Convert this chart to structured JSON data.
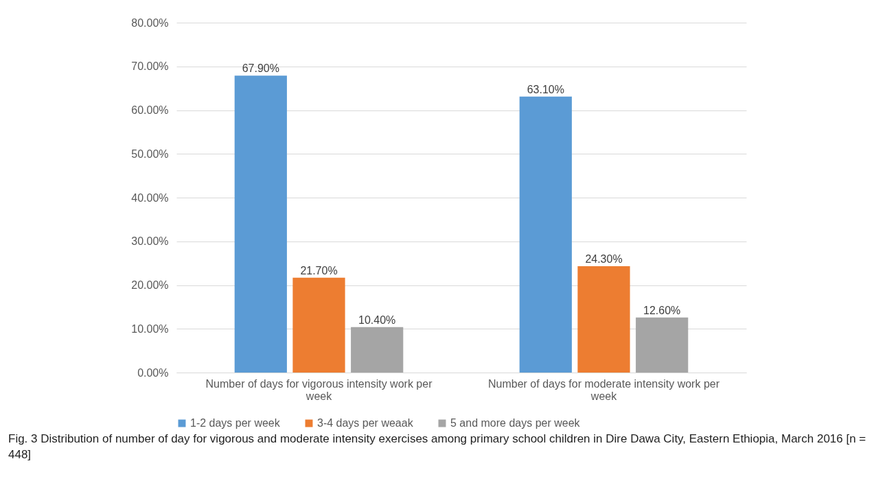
{
  "chart_data": {
    "type": "bar",
    "categories": [
      "Number of days for vigorous intensity work  per week",
      "Number of days for moderate intensity work  per week"
    ],
    "series": [
      {
        "name": "1-2 days per week",
        "color": "#5b9bd5",
        "values": [
          67.9,
          63.1
        ],
        "value_labels": [
          "67.90%",
          "63.10%"
        ]
      },
      {
        "name": "3-4 days per weaak",
        "color": "#ed7d31",
        "values": [
          21.7,
          24.3
        ],
        "value_labels": [
          "21.70%",
          "24.30%"
        ]
      },
      {
        "name": "5 and more days per week",
        "color": "#a5a5a5",
        "values": [
          10.4,
          12.6
        ],
        "value_labels": [
          "10.40%",
          "12.60%"
        ]
      }
    ],
    "ylim": [
      0,
      80
    ],
    "yticks": [
      {
        "value": 0,
        "label": "0.00%"
      },
      {
        "value": 10,
        "label": "10.00%"
      },
      {
        "value": 20,
        "label": "20.00%"
      },
      {
        "value": 30,
        "label": "30.00%"
      },
      {
        "value": 40,
        "label": "40.00%"
      },
      {
        "value": 50,
        "label": "50.00%"
      },
      {
        "value": 60,
        "label": "60.00%"
      },
      {
        "value": 70,
        "label": "70.00%"
      },
      {
        "value": 80,
        "label": "80.00%"
      }
    ],
    "grid": "y",
    "legend": "bottom",
    "annotations": [
      "Fig. 3 Distribution of number of day for vigorous and moderate intensity exercises among primary school children in Dire Dawa City, Eastern Ethiopia, March 2016 [n = 448]"
    ]
  }
}
